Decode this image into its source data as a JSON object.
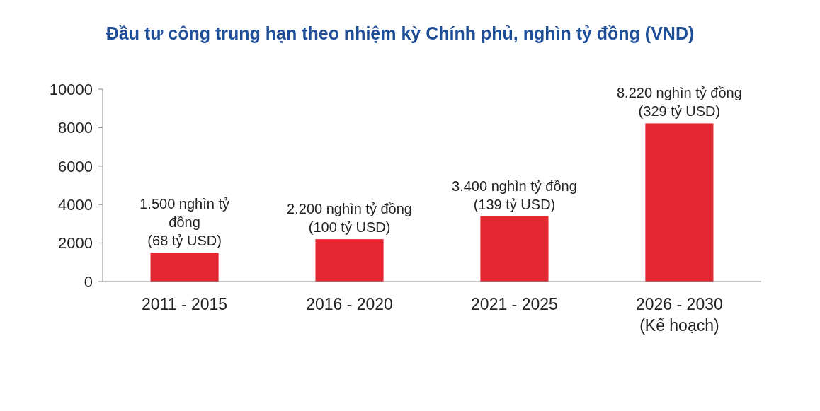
{
  "chart_data": {
    "type": "bar",
    "title": "Đầu tư công trung hạn theo nhiệm kỳ Chính phủ, nghìn tỷ đồng (VND)",
    "categories": [
      "2011 - 2015",
      "2016 - 2020",
      "2021 - 2025",
      "2026 - 2030\n(Kế hoạch)"
    ],
    "values": [
      1500,
      2200,
      3400,
      8220
    ],
    "value_labels": [
      "1.500 nghìn tỷ\nđồng\n(68 tỷ USD)",
      "2.200 nghìn tỷ đồng\n(100 tỷ USD)",
      "3.400 nghìn tỷ đồng\n(139 tỷ USD)",
      "8.220 nghìn tỷ đồng\n(329 tỷ USD)"
    ],
    "color": "#e3262f",
    "ylim": [
      0,
      10000
    ],
    "yticks": [
      0,
      2000,
      4000,
      6000,
      8000,
      10000
    ]
  }
}
